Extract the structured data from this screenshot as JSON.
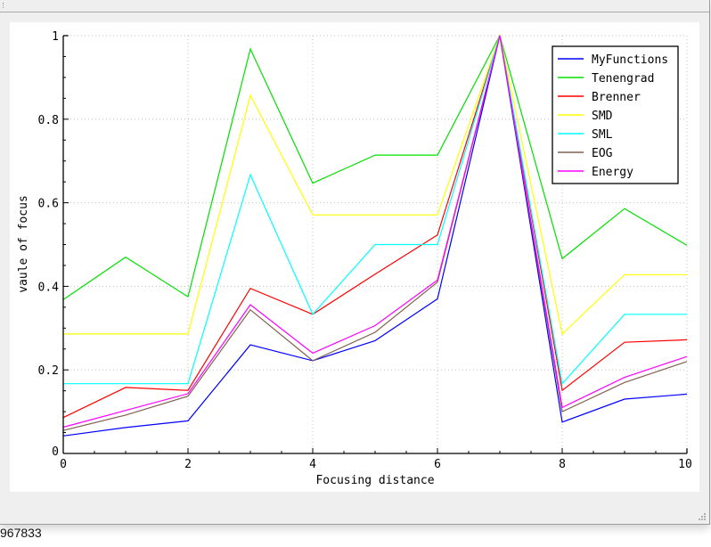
{
  "window": {
    "status_text": "967833"
  },
  "legend": {
    "items": [
      {
        "label": "MyFunctions",
        "color": "#0000ff"
      },
      {
        "label": "Tenengrad",
        "color": "#00e000"
      },
      {
        "label": "Brenner",
        "color": "#ff0000"
      },
      {
        "label": "SMD",
        "color": "#ffff00"
      },
      {
        "label": "SML",
        "color": "#00ffff"
      },
      {
        "label": "EOG",
        "color": "#806050"
      },
      {
        "label": "Energy",
        "color": "#ff00ff"
      }
    ]
  },
  "chart_data": {
    "type": "line",
    "title": "",
    "xlabel": "Focusing distance",
    "ylabel": "vaule of focus",
    "xlim": [
      0,
      10
    ],
    "ylim": [
      0,
      1
    ],
    "x_ticks": [
      "0",
      "2",
      "4",
      "6",
      "8",
      "10"
    ],
    "y_ticks": [
      "0",
      "0.2",
      "0.4",
      "0.6",
      "0.8",
      "1"
    ],
    "grid": true,
    "legend_position": "upper right",
    "x": [
      0,
      1,
      2,
      3,
      4,
      5,
      6,
      7,
      8,
      9,
      10
    ],
    "series": [
      {
        "name": "MyFunctions",
        "color": "#0000ff",
        "values": [
          0.042,
          0.062,
          0.078,
          0.26,
          0.222,
          0.27,
          0.37,
          1.0,
          0.075,
          0.13,
          0.142
        ]
      },
      {
        "name": "Tenengrad",
        "color": "#00e000",
        "values": [
          0.368,
          0.47,
          0.375,
          0.968,
          0.647,
          0.714,
          0.714,
          1.0,
          0.466,
          0.586,
          0.498
        ]
      },
      {
        "name": "Brenner",
        "color": "#ff0000",
        "values": [
          0.086,
          0.158,
          0.151,
          0.395,
          0.333,
          0.429,
          0.523,
          1.0,
          0.151,
          0.266,
          0.272
        ]
      },
      {
        "name": "SMD",
        "color": "#ffff00",
        "values": [
          0.286,
          0.286,
          0.286,
          0.857,
          0.571,
          0.571,
          0.571,
          1.0,
          0.286,
          0.428,
          0.428
        ]
      },
      {
        "name": "SML",
        "color": "#00ffff",
        "values": [
          0.167,
          0.167,
          0.167,
          0.667,
          0.333,
          0.5,
          0.5,
          1.0,
          0.167,
          0.333,
          0.333
        ]
      },
      {
        "name": "EOG",
        "color": "#806050",
        "values": [
          0.055,
          0.092,
          0.137,
          0.344,
          0.222,
          0.29,
          0.41,
          1.0,
          0.1,
          0.17,
          0.22
        ]
      },
      {
        "name": "Energy",
        "color": "#ff00ff",
        "values": [
          0.063,
          0.103,
          0.143,
          0.356,
          0.24,
          0.306,
          0.415,
          1.0,
          0.11,
          0.182,
          0.232
        ]
      }
    ]
  }
}
